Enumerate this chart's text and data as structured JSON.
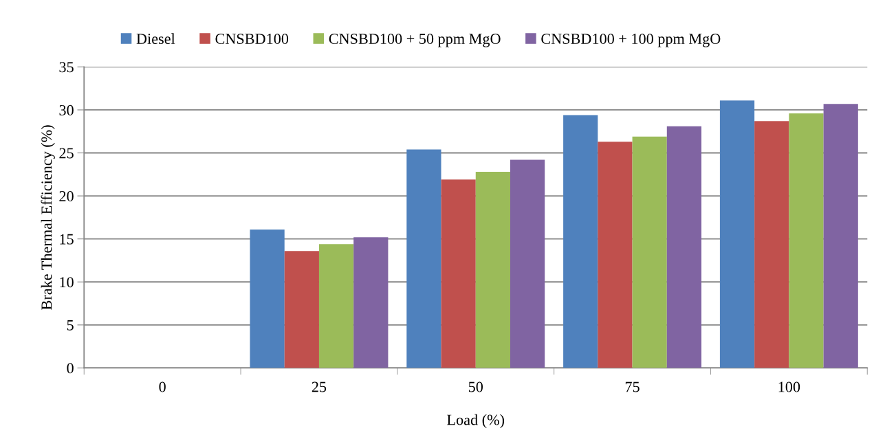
{
  "chart_data": {
    "type": "bar",
    "xlabel": "Load (%)",
    "ylabel": "Brake Thermal Efficiency (%)",
    "categories": [
      "0",
      "25",
      "50",
      "75",
      "100"
    ],
    "series": [
      {
        "name": "Diesel",
        "color": "#4f81bd",
        "values": [
          null,
          16.1,
          25.4,
          29.4,
          31.1
        ]
      },
      {
        "name": "CNSBD100",
        "color": "#c0504d",
        "values": [
          null,
          13.6,
          21.9,
          26.3,
          28.7
        ]
      },
      {
        "name": "CNSBD100 + 50 ppm MgO",
        "color": "#9bbb59",
        "values": [
          null,
          14.4,
          22.8,
          26.9,
          29.6
        ]
      },
      {
        "name": "CNSBD100 + 100 ppm MgO",
        "color": "#8064a2",
        "values": [
          null,
          15.2,
          24.2,
          28.1,
          30.7
        ]
      }
    ],
    "ylim": [
      0,
      35
    ],
    "yticks": [
      0,
      5,
      10,
      15,
      20,
      25,
      30,
      35
    ],
    "grid": "y",
    "legend": "top"
  }
}
